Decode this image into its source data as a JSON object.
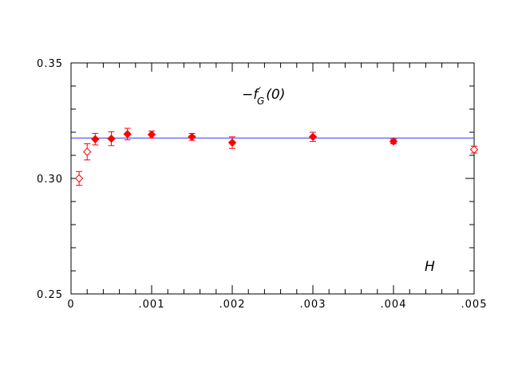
{
  "chart_data": {
    "type": "scatter",
    "annotation_main": "−f",
    "annotation_prime": "′",
    "annotation_sub": "G",
    "annotation_arg": "(0)",
    "x_axis_symbol": "H",
    "xlim": [
      0,
      0.005
    ],
    "ylim": [
      0.25,
      0.35
    ],
    "x_ticks": [
      0,
      0.001,
      0.002,
      0.003,
      0.004,
      0.005
    ],
    "x_tick_labels": [
      "0",
      ".001",
      ".002",
      ".003",
      ".004",
      ".005"
    ],
    "y_ticks": [
      0.25,
      0.3,
      0.35
    ],
    "y_tick_labels": [
      "0.25",
      "0.30",
      "0.35"
    ],
    "x_minor_step": 0.0002,
    "y_minor_step": 0.01,
    "reference_line": {
      "y": 0.3175,
      "color": "#3333ff"
    },
    "marker_color": "#ff0000",
    "series": [
      {
        "marker": "open-diamond",
        "points": [
          {
            "x": 0.0001,
            "y": 0.3,
            "err": 0.003
          },
          {
            "x": 0.0002,
            "y": 0.3115,
            "err": 0.0035
          },
          {
            "x": 0.005,
            "y": 0.3125,
            "err": 0.0015
          }
        ]
      },
      {
        "marker": "filled-diamond",
        "points": [
          {
            "x": 0.0003,
            "y": 0.317,
            "err": 0.0025
          },
          {
            "x": 0.0005,
            "y": 0.3172,
            "err": 0.003
          },
          {
            "x": 0.0007,
            "y": 0.3192,
            "err": 0.0025
          },
          {
            "x": 0.001,
            "y": 0.319,
            "err": 0.0015
          },
          {
            "x": 0.0015,
            "y": 0.318,
            "err": 0.0015
          },
          {
            "x": 0.002,
            "y": 0.3155,
            "err": 0.0025
          },
          {
            "x": 0.003,
            "y": 0.318,
            "err": 0.002
          },
          {
            "x": 0.004,
            "y": 0.316,
            "err": 0.001
          }
        ]
      }
    ]
  }
}
